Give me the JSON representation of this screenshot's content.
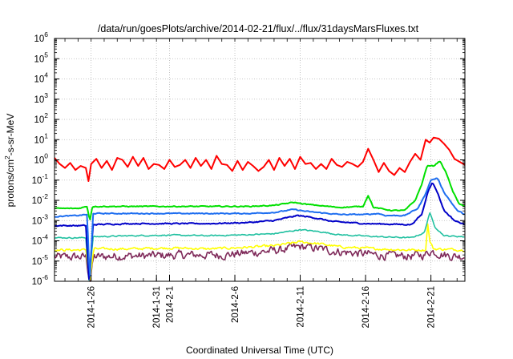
{
  "chart_data": {
    "type": "line",
    "title": "/data/run/goesPlots/archive/2014-02-21/flux/../flux/31daysMarsFluxes.txt",
    "xlabel": "Coordinated Universal Time (UTC)",
    "ylabel": {
      "base": "protons/cm",
      "sup": "2",
      "rest": "-s-sr-MeV"
    },
    "yscale": "log",
    "ylim_exp": [
      -6,
      6
    ],
    "xlim_day": [
      -8.8,
      22.6
    ],
    "grid": true,
    "x_ticks": [
      {
        "label": "2014-1-26",
        "day": -6
      },
      {
        "label": "2014-1-31",
        "day": -1
      },
      {
        "label": "2014-2-1",
        "day": 0
      },
      {
        "label": "2014-2-6",
        "day": 5
      },
      {
        "label": "2014-2-11",
        "day": 10
      },
      {
        "label": "2014-2-16",
        "day": 15
      },
      {
        "label": "2014-2-21",
        "day": 20
      }
    ],
    "y_ticks": [
      {
        "base": "10",
        "exp": "6"
      },
      {
        "base": "10",
        "exp": "5"
      },
      {
        "base": "10",
        "exp": "4"
      },
      {
        "base": "10",
        "exp": "3"
      },
      {
        "base": "10",
        "exp": "2"
      },
      {
        "base": "10",
        "exp": "1"
      },
      {
        "base": "10",
        "exp": "0"
      },
      {
        "base": "10",
        "exp": "-1"
      },
      {
        "base": "10",
        "exp": "-2"
      },
      {
        "base": "10",
        "exp": "-3"
      },
      {
        "base": "10",
        "exp": "-4"
      },
      {
        "base": "10",
        "exp": "-5"
      },
      {
        "base": "10",
        "exp": "-6"
      }
    ],
    "series": [
      {
        "color": "#7f2a5a",
        "width": 1.6,
        "noise": 0.35,
        "points": [
          [
            -8.8,
            -4.8
          ],
          [
            -7,
            -4.8
          ],
          [
            -6.4,
            -4.8
          ],
          [
            -6.1,
            -6
          ],
          [
            -5.8,
            -4.8
          ],
          [
            -4,
            -4.75
          ],
          [
            -2,
            -4.75
          ],
          [
            0,
            -4.72
          ],
          [
            2,
            -4.7
          ],
          [
            4,
            -4.7
          ],
          [
            5,
            -4.65
          ],
          [
            7,
            -4.55
          ],
          [
            8.5,
            -4.45
          ],
          [
            10,
            -4.3
          ],
          [
            11,
            -4.35
          ],
          [
            12.5,
            -4.5
          ],
          [
            14,
            -4.6
          ],
          [
            15,
            -4.65
          ],
          [
            17,
            -4.75
          ],
          [
            18.5,
            -4.75
          ],
          [
            19.5,
            -4.7
          ],
          [
            20,
            -4.5
          ],
          [
            20.5,
            -4.6
          ],
          [
            21.5,
            -4.75
          ],
          [
            22.6,
            -4.75
          ]
        ]
      },
      {
        "color": "#ffff00",
        "width": 1.6,
        "noise": 0.1,
        "points": [
          [
            -8.8,
            -4.45
          ],
          [
            -6.4,
            -4.45
          ],
          [
            -6.1,
            -6
          ],
          [
            -5.8,
            -4.4
          ],
          [
            -3,
            -4.4
          ],
          [
            0,
            -4.35
          ],
          [
            3,
            -4.4
          ],
          [
            5,
            -4.35
          ],
          [
            8,
            -4.25
          ],
          [
            10,
            -4.05
          ],
          [
            11.5,
            -4.15
          ],
          [
            13,
            -4.3
          ],
          [
            16,
            -4.4
          ],
          [
            18,
            -4.45
          ],
          [
            19.6,
            -4.45
          ],
          [
            19.75,
            -3.1
          ],
          [
            19.9,
            -4.0
          ],
          [
            20.2,
            -4.4
          ],
          [
            22.6,
            -4.45
          ]
        ]
      },
      {
        "color": "#20c0a0",
        "width": 1.6,
        "noise": 0.05,
        "points": [
          [
            -8.8,
            -3.85
          ],
          [
            -6.4,
            -3.85
          ],
          [
            -6.15,
            -6
          ],
          [
            -5.85,
            -3.8
          ],
          [
            -3,
            -3.75
          ],
          [
            0,
            -3.72
          ],
          [
            3,
            -3.75
          ],
          [
            6,
            -3.7
          ],
          [
            8,
            -3.65
          ],
          [
            10,
            -3.45
          ],
          [
            11.5,
            -3.55
          ],
          [
            13,
            -3.7
          ],
          [
            16,
            -3.8
          ],
          [
            18.5,
            -3.85
          ],
          [
            19.5,
            -3.6
          ],
          [
            19.9,
            -2.6
          ],
          [
            20.3,
            -3.3
          ],
          [
            21,
            -3.75
          ],
          [
            22.6,
            -3.8
          ]
        ]
      },
      {
        "color": "#0000c8",
        "width": 2.0,
        "noise": 0.05,
        "points": [
          [
            -8.8,
            -3.25
          ],
          [
            -6.4,
            -3.25
          ],
          [
            -6.15,
            -6
          ],
          [
            -5.85,
            -3.2
          ],
          [
            -3,
            -3.15
          ],
          [
            0,
            -3.15
          ],
          [
            3,
            -3.15
          ],
          [
            6,
            -3.1
          ],
          [
            8,
            -3.0
          ],
          [
            9.8,
            -2.75
          ],
          [
            11,
            -2.85
          ],
          [
            12.5,
            -3.05
          ],
          [
            15,
            -3.15
          ],
          [
            18.5,
            -3.2
          ],
          [
            19.3,
            -2.7
          ],
          [
            19.8,
            -1.5
          ],
          [
            20.1,
            -1.1
          ],
          [
            20.5,
            -1.6
          ],
          [
            21,
            -2.5
          ],
          [
            21.8,
            -3.0
          ],
          [
            22.6,
            -3.2
          ]
        ]
      },
      {
        "color": "#1e6ef0",
        "width": 2.0,
        "noise": 0.04,
        "points": [
          [
            -8.8,
            -2.8
          ],
          [
            -7,
            -2.75
          ],
          [
            -6.3,
            -2.7
          ],
          [
            -6.1,
            -6
          ],
          [
            -5.85,
            -2.65
          ],
          [
            -3,
            -2.65
          ],
          [
            0,
            -2.65
          ],
          [
            3,
            -2.65
          ],
          [
            6,
            -2.65
          ],
          [
            8,
            -2.6
          ],
          [
            9.5,
            -2.45
          ],
          [
            10.5,
            -2.55
          ],
          [
            13,
            -2.7
          ],
          [
            15,
            -2.7
          ],
          [
            16,
            -2.65
          ],
          [
            16.5,
            -2.75
          ],
          [
            18,
            -2.75
          ],
          [
            19,
            -2.4
          ],
          [
            19.5,
            -1.8
          ],
          [
            20,
            -1.0
          ],
          [
            20.5,
            -0.9
          ],
          [
            21,
            -1.6
          ],
          [
            22,
            -2.5
          ],
          [
            22.6,
            -2.7
          ]
        ]
      },
      {
        "color": "#00e000",
        "width": 2.0,
        "noise": 0.04,
        "points": [
          [
            -8.8,
            -2.4
          ],
          [
            -7,
            -2.4
          ],
          [
            -6.3,
            -2.3
          ],
          [
            -6.1,
            -3.0
          ],
          [
            -5.9,
            -2.3
          ],
          [
            -3,
            -2.3
          ],
          [
            0,
            -2.3
          ],
          [
            3,
            -2.3
          ],
          [
            6,
            -2.3
          ],
          [
            8,
            -2.25
          ],
          [
            9.5,
            -2.1
          ],
          [
            10.5,
            -2.2
          ],
          [
            13,
            -2.35
          ],
          [
            14.8,
            -2.3
          ],
          [
            15.2,
            -1.75
          ],
          [
            15.6,
            -2.35
          ],
          [
            17,
            -2.5
          ],
          [
            18,
            -2.5
          ],
          [
            18.8,
            -2.0
          ],
          [
            19.3,
            -1.2
          ],
          [
            19.7,
            -0.3
          ],
          [
            20.2,
            -0.3
          ],
          [
            20.7,
            -0.05
          ],
          [
            21.2,
            -0.7
          ],
          [
            21.7,
            -1.6
          ],
          [
            22.2,
            -2.2
          ],
          [
            22.6,
            -2.3
          ]
        ]
      },
      {
        "color": "#ff0000",
        "width": 2.0,
        "noise": 0.0,
        "points": [
          [
            -8.8,
            0.1
          ],
          [
            -8.4,
            -0.2
          ],
          [
            -8.0,
            -0.4
          ],
          [
            -7.6,
            -0.15
          ],
          [
            -7.2,
            -0.5
          ],
          [
            -6.8,
            -0.3
          ],
          [
            -6.4,
            -0.4
          ],
          [
            -6.2,
            -1.05
          ],
          [
            -6.0,
            -0.2
          ],
          [
            -5.6,
            0.05
          ],
          [
            -5.2,
            -0.4
          ],
          [
            -4.8,
            -0.05
          ],
          [
            -4.4,
            -0.5
          ],
          [
            -4.0,
            0.1
          ],
          [
            -3.6,
            0.0
          ],
          [
            -3.2,
            -0.35
          ],
          [
            -2.8,
            0.15
          ],
          [
            -2.4,
            -0.3
          ],
          [
            -2.0,
            0.1
          ],
          [
            -1.6,
            -0.45
          ],
          [
            -1.2,
            -0.2
          ],
          [
            -0.8,
            -0.25
          ],
          [
            -0.4,
            -0.45
          ],
          [
            0.0,
            0.0
          ],
          [
            0.4,
            -0.35
          ],
          [
            0.8,
            -0.25
          ],
          [
            1.2,
            0.0
          ],
          [
            1.6,
            -0.4
          ],
          [
            2.0,
            0.1
          ],
          [
            2.4,
            -0.3
          ],
          [
            2.8,
            0.0
          ],
          [
            3.2,
            -0.45
          ],
          [
            3.6,
            0.2
          ],
          [
            4.0,
            -0.2
          ],
          [
            4.4,
            -0.25
          ],
          [
            4.8,
            -0.55
          ],
          [
            5.2,
            -0.05
          ],
          [
            5.6,
            -0.5
          ],
          [
            6.0,
            -0.1
          ],
          [
            6.4,
            -0.3
          ],
          [
            6.8,
            -0.55
          ],
          [
            7.2,
            -0.35
          ],
          [
            7.6,
            0.0
          ],
          [
            8.0,
            -0.5
          ],
          [
            8.4,
            0.1
          ],
          [
            8.8,
            -0.3
          ],
          [
            9.2,
            0.05
          ],
          [
            9.6,
            -0.45
          ],
          [
            10.0,
            0.15
          ],
          [
            10.4,
            -0.2
          ],
          [
            10.8,
            -0.15
          ],
          [
            11.2,
            -0.45
          ],
          [
            11.6,
            -0.2
          ],
          [
            12.0,
            -0.45
          ],
          [
            12.4,
            0.05
          ],
          [
            12.8,
            -0.25
          ],
          [
            13.2,
            -0.35
          ],
          [
            13.6,
            -0.1
          ],
          [
            14.0,
            -0.2
          ],
          [
            14.4,
            -0.35
          ],
          [
            14.8,
            -0.1
          ],
          [
            15.2,
            0.55
          ],
          [
            15.6,
            0.0
          ],
          [
            16.0,
            -0.6
          ],
          [
            16.4,
            -0.15
          ],
          [
            16.8,
            -0.55
          ],
          [
            17.2,
            -0.75
          ],
          [
            17.6,
            -0.4
          ],
          [
            18.0,
            -0.6
          ],
          [
            18.4,
            -0.1
          ],
          [
            18.8,
            0.3
          ],
          [
            19.2,
            0.0
          ],
          [
            19.6,
            1.0
          ],
          [
            19.9,
            0.85
          ],
          [
            20.2,
            1.1
          ],
          [
            20.6,
            1.05
          ],
          [
            21.0,
            0.8
          ],
          [
            21.4,
            0.5
          ],
          [
            21.8,
            0.05
          ],
          [
            22.2,
            -0.1
          ],
          [
            22.6,
            -0.25
          ]
        ]
      }
    ]
  }
}
